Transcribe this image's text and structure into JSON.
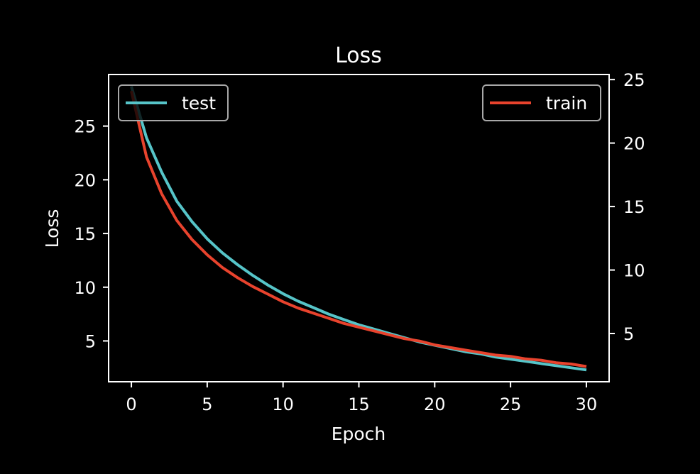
{
  "chart_data": {
    "type": "line",
    "title": "Loss",
    "xlabel": "Epoch",
    "ylabel": "Loss",
    "y2label": "",
    "xlim": [
      -1.5,
      31.5
    ],
    "ylim": [
      1.2,
      29.8
    ],
    "y2lim": [
      1.2,
      25.4
    ],
    "x_ticks": [
      0,
      5,
      10,
      15,
      20,
      25,
      30
    ],
    "y_ticks": [
      5,
      10,
      15,
      20,
      25
    ],
    "y2_ticks": [
      5,
      10,
      15,
      20,
      25
    ],
    "grid": false,
    "background": "#000000",
    "foreground": "#ffffff",
    "series": [
      {
        "name": "test",
        "axis": "left",
        "color": "#56c4c8",
        "legend": "upper left",
        "x": [
          0,
          1,
          2,
          3,
          4,
          5,
          6,
          7,
          8,
          9,
          10,
          11,
          12,
          13,
          14,
          15,
          16,
          17,
          18,
          19,
          20,
          21,
          22,
          23,
          24,
          25,
          26,
          27,
          28,
          29,
          30
        ],
        "values": [
          28.7,
          23.9,
          20.7,
          18.0,
          16.1,
          14.5,
          13.2,
          12.1,
          11.1,
          10.2,
          9.4,
          8.7,
          8.1,
          7.5,
          7.0,
          6.5,
          6.1,
          5.7,
          5.3,
          4.9,
          4.6,
          4.3,
          4.0,
          3.8,
          3.5,
          3.3,
          3.1,
          2.9,
          2.7,
          2.5,
          2.3
        ]
      },
      {
        "name": "train",
        "axis": "right",
        "color": "#e8432d",
        "legend": "upper right",
        "x": [
          0,
          1,
          2,
          3,
          4,
          5,
          6,
          7,
          8,
          9,
          10,
          11,
          12,
          13,
          14,
          15,
          16,
          17,
          18,
          19,
          20,
          21,
          22,
          23,
          24,
          25,
          26,
          27,
          28,
          29,
          30
        ],
        "values": [
          24.1,
          18.9,
          16.0,
          13.9,
          12.4,
          11.2,
          10.2,
          9.4,
          8.7,
          8.1,
          7.5,
          7.0,
          6.6,
          6.2,
          5.8,
          5.5,
          5.2,
          4.9,
          4.6,
          4.4,
          4.1,
          3.9,
          3.7,
          3.5,
          3.3,
          3.2,
          3.0,
          2.9,
          2.7,
          2.6,
          2.4
        ]
      }
    ]
  }
}
